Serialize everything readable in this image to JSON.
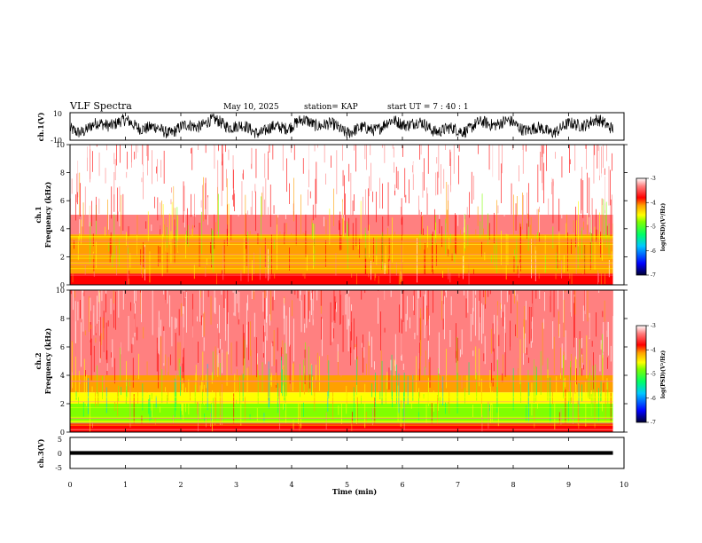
{
  "header": {
    "title": "VLF Spectra",
    "date": "May 10, 2025",
    "station": "station= KAP",
    "start_ut": "start  UT =   7 : 40 : 1"
  },
  "colors": {
    "spectrogram_scale": [
      "#000033",
      "#0000ff",
      "#00c8ff",
      "#00ff66",
      "#80ff00",
      "#ffff00",
      "#ffa000",
      "#ff0000",
      "#ff8080",
      "#ffffff"
    ],
    "waveform": "#000000"
  },
  "chart_data": [
    {
      "type": "line",
      "name": "ch1-waveform",
      "ylabel": "ch.1(V)",
      "ylim": [
        -10,
        10
      ],
      "yticks": [
        10,
        -10
      ],
      "xlim": [
        0,
        10
      ],
      "data_end_min": 9.8,
      "description_values": {
        "typical_range": [
          -7,
          7
        ],
        "noise": "broadband"
      }
    },
    {
      "type": "heatmap",
      "name": "ch1-spectrogram",
      "ylabel": "ch.1\nFrequency (kHz)",
      "ylabel_lines": [
        "ch.1",
        "Frequency  (kHz)"
      ],
      "ylim": [
        0,
        10
      ],
      "yticks": [
        0,
        2,
        4,
        6,
        8,
        10
      ],
      "xlim": [
        0,
        10
      ],
      "data_end_min": 9.8,
      "colorbar": {
        "label": "log(PSD)(V²/Hz)",
        "ticks": [
          -3,
          -4,
          -5,
          -6,
          -7
        ],
        "range": [
          -7,
          -3
        ]
      },
      "bands_kHz": [
        {
          "from": 0,
          "to": 0.8,
          "log_psd": -4.0
        },
        {
          "from": 0.8,
          "to": 3.6,
          "log_psd": -4.6
        },
        {
          "from": 3.6,
          "to": 5.0,
          "log_psd": -3.8
        },
        {
          "from": 5.0,
          "to": 10,
          "log_psd": -3.3
        }
      ]
    },
    {
      "type": "heatmap",
      "name": "ch2-spectrogram",
      "ylabel_lines": [
        "ch.2",
        "Frequency  (kHz)"
      ],
      "ylim": [
        0,
        10
      ],
      "yticks": [
        0,
        2,
        4,
        6,
        8,
        10
      ],
      "xlim": [
        0,
        10
      ],
      "data_end_min": 9.8,
      "colorbar": {
        "label": "log(PSD)(V²/Hz)",
        "ticks": [
          -3,
          -4,
          -5,
          -6,
          -7
        ],
        "range": [
          -7,
          -3
        ]
      },
      "bands_kHz": [
        {
          "from": 0,
          "to": 0.6,
          "log_psd": -4.2
        },
        {
          "from": 0.6,
          "to": 2.0,
          "log_psd": -5.2
        },
        {
          "from": 2.0,
          "to": 2.8,
          "log_psd": -5.0
        },
        {
          "from": 2.8,
          "to": 4.0,
          "log_psd": -4.4
        },
        {
          "from": 4.0,
          "to": 10,
          "log_psd": -3.6
        }
      ]
    },
    {
      "type": "line",
      "name": "ch3-waveform",
      "ylabel": "ch.3(V)",
      "ylim": [
        -5,
        5
      ],
      "yticks": [
        5,
        0,
        -5
      ],
      "xlim": [
        0,
        10
      ],
      "data_end_min": 9.8,
      "description_values": {
        "typical_range": [
          -0.6,
          0.6
        ]
      }
    }
  ],
  "xaxis": {
    "label": "Time  (min)",
    "ticks": [
      "0",
      "1",
      "2",
      "3",
      "4",
      "5",
      "6",
      "7",
      "8",
      "9",
      "10"
    ]
  }
}
